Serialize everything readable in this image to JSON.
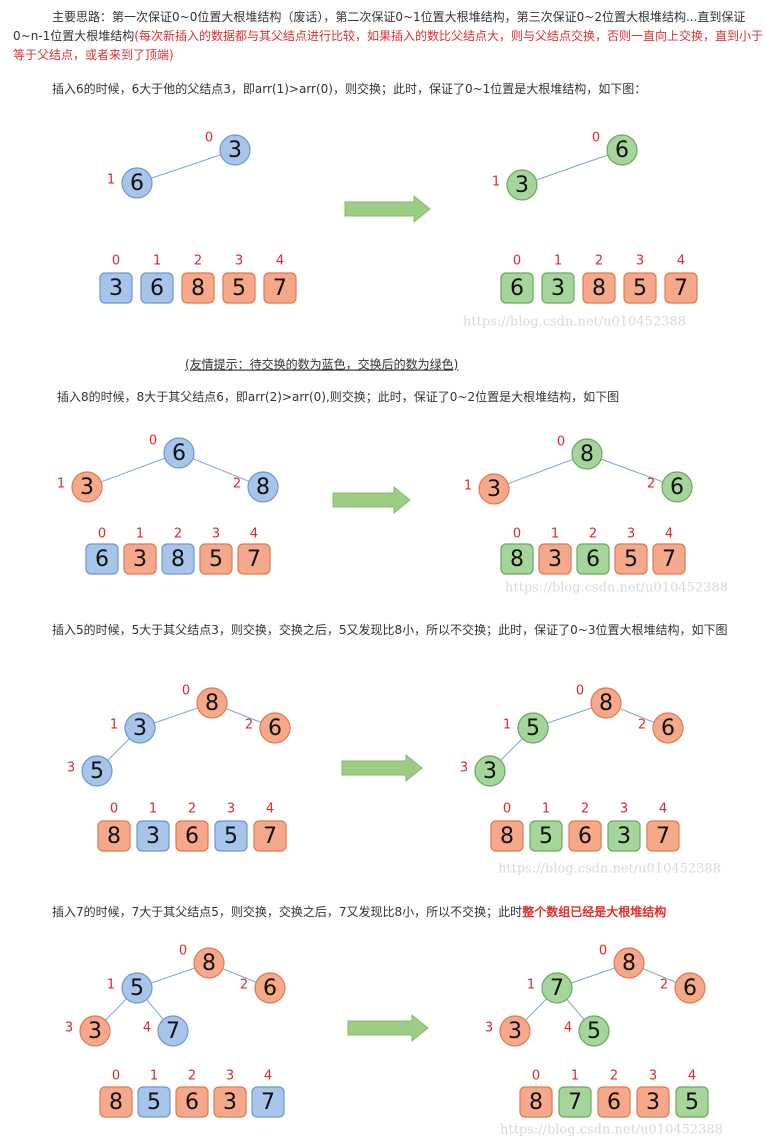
{
  "intro": {
    "text": "主要思路：第一次保证0~0位置大根堆结构（废话），第二次保证0~1位置大根堆结构，第三次保证0~2位置大根堆结构...直到保证0~n-1位置大根堆结构",
    "note": "(每次新插入的数据都与其父结点进行比较，如果插入的数比父结点大，则与父结点交换，否则一直向上交换，直到小于等于父结点，或者来到了顶端)"
  },
  "hint": "(友情提示：待交换的数为蓝色，交换后的数为绿色)",
  "steps": [
    {
      "caption": "插入6的时候，6大于他的父结点3，即arr(1)>arr(0)，则交换；此时，保证了0~1位置是大根堆结构，如下图：",
      "watermark": "https://blog.csdn.net/u010452388",
      "before": {
        "nodes": [
          {
            "index": 0,
            "value": 3,
            "color": "blue"
          },
          {
            "index": 1,
            "value": 6,
            "color": "blue"
          }
        ],
        "array": [
          {
            "index": 0,
            "value": 3,
            "color": "blue"
          },
          {
            "index": 1,
            "value": 6,
            "color": "blue"
          },
          {
            "index": 2,
            "value": 8,
            "color": "orange"
          },
          {
            "index": 3,
            "value": 5,
            "color": "orange"
          },
          {
            "index": 4,
            "value": 7,
            "color": "orange"
          }
        ]
      },
      "after": {
        "nodes": [
          {
            "index": 0,
            "value": 6,
            "color": "green"
          },
          {
            "index": 1,
            "value": 3,
            "color": "green"
          }
        ],
        "array": [
          {
            "index": 0,
            "value": 6,
            "color": "green"
          },
          {
            "index": 1,
            "value": 3,
            "color": "green"
          },
          {
            "index": 2,
            "value": 8,
            "color": "orange"
          },
          {
            "index": 3,
            "value": 5,
            "color": "orange"
          },
          {
            "index": 4,
            "value": 7,
            "color": "orange"
          }
        ]
      }
    },
    {
      "caption": "插入8的时候，8大于其父结点6，即arr(2)>arr(0),则交换；此时，保证了0~2位置是大根堆结构，如下图",
      "watermark": "https://blog.csdn.net/u010452388",
      "before": {
        "nodes": [
          {
            "index": 0,
            "value": 6,
            "color": "blue"
          },
          {
            "index": 1,
            "value": 3,
            "color": "orange"
          },
          {
            "index": 2,
            "value": 8,
            "color": "blue"
          }
        ],
        "array": [
          {
            "index": 0,
            "value": 6,
            "color": "blue"
          },
          {
            "index": 1,
            "value": 3,
            "color": "orange"
          },
          {
            "index": 2,
            "value": 8,
            "color": "blue"
          },
          {
            "index": 3,
            "value": 5,
            "color": "orange"
          },
          {
            "index": 4,
            "value": 7,
            "color": "orange"
          }
        ]
      },
      "after": {
        "nodes": [
          {
            "index": 0,
            "value": 8,
            "color": "green"
          },
          {
            "index": 1,
            "value": 3,
            "color": "orange"
          },
          {
            "index": 2,
            "value": 6,
            "color": "green"
          }
        ],
        "array": [
          {
            "index": 0,
            "value": 8,
            "color": "green"
          },
          {
            "index": 1,
            "value": 3,
            "color": "orange"
          },
          {
            "index": 2,
            "value": 6,
            "color": "green"
          },
          {
            "index": 3,
            "value": 5,
            "color": "orange"
          },
          {
            "index": 4,
            "value": 7,
            "color": "orange"
          }
        ]
      }
    },
    {
      "caption": "插入5的时候，5大于其父结点3，则交换，交换之后，5又发现比8小，所以不交换；此时，保证了0~3位置大根堆结构，如下图",
      "watermark": "https://blog.csdn.net/u010452388",
      "before": {
        "nodes": [
          {
            "index": 0,
            "value": 8,
            "color": "orange"
          },
          {
            "index": 1,
            "value": 3,
            "color": "blue"
          },
          {
            "index": 2,
            "value": 6,
            "color": "orange"
          },
          {
            "index": 3,
            "value": 5,
            "color": "blue"
          }
        ],
        "array": [
          {
            "index": 0,
            "value": 8,
            "color": "orange"
          },
          {
            "index": 1,
            "value": 3,
            "color": "blue"
          },
          {
            "index": 2,
            "value": 6,
            "color": "orange"
          },
          {
            "index": 3,
            "value": 5,
            "color": "blue"
          },
          {
            "index": 4,
            "value": 7,
            "color": "orange"
          }
        ]
      },
      "after": {
        "nodes": [
          {
            "index": 0,
            "value": 8,
            "color": "orange"
          },
          {
            "index": 1,
            "value": 5,
            "color": "green"
          },
          {
            "index": 2,
            "value": 6,
            "color": "orange"
          },
          {
            "index": 3,
            "value": 3,
            "color": "green"
          }
        ],
        "array": [
          {
            "index": 0,
            "value": 8,
            "color": "orange"
          },
          {
            "index": 1,
            "value": 5,
            "color": "green"
          },
          {
            "index": 2,
            "value": 6,
            "color": "orange"
          },
          {
            "index": 3,
            "value": 3,
            "color": "green"
          },
          {
            "index": 4,
            "value": 7,
            "color": "orange"
          }
        ]
      }
    },
    {
      "caption": "插入7的时候，7大于其父结点5，则交换，交换之后，7又发现比8小，所以不交换；此时",
      "emphasis": "整个数组已经是大根堆结构",
      "watermark": "https://blog.csdn.net/u010452388",
      "before": {
        "nodes": [
          {
            "index": 0,
            "value": 8,
            "color": "orange"
          },
          {
            "index": 1,
            "value": 5,
            "color": "blue"
          },
          {
            "index": 2,
            "value": 6,
            "color": "orange"
          },
          {
            "index": 3,
            "value": 3,
            "color": "orange"
          },
          {
            "index": 4,
            "value": 7,
            "color": "blue"
          }
        ],
        "array": [
          {
            "index": 0,
            "value": 8,
            "color": "orange"
          },
          {
            "index": 1,
            "value": 5,
            "color": "blue"
          },
          {
            "index": 2,
            "value": 6,
            "color": "orange"
          },
          {
            "index": 3,
            "value": 3,
            "color": "orange"
          },
          {
            "index": 4,
            "value": 7,
            "color": "blue"
          }
        ]
      },
      "after": {
        "nodes": [
          {
            "index": 0,
            "value": 8,
            "color": "orange"
          },
          {
            "index": 1,
            "value": 7,
            "color": "green"
          },
          {
            "index": 2,
            "value": 6,
            "color": "orange"
          },
          {
            "index": 3,
            "value": 3,
            "color": "orange"
          },
          {
            "index": 4,
            "value": 5,
            "color": "green"
          }
        ],
        "array": [
          {
            "index": 0,
            "value": 8,
            "color": "orange"
          },
          {
            "index": 1,
            "value": 7,
            "color": "green"
          },
          {
            "index": 2,
            "value": 6,
            "color": "orange"
          },
          {
            "index": 3,
            "value": 3,
            "color": "orange"
          },
          {
            "index": 4,
            "value": 5,
            "color": "green"
          }
        ]
      }
    }
  ]
}
